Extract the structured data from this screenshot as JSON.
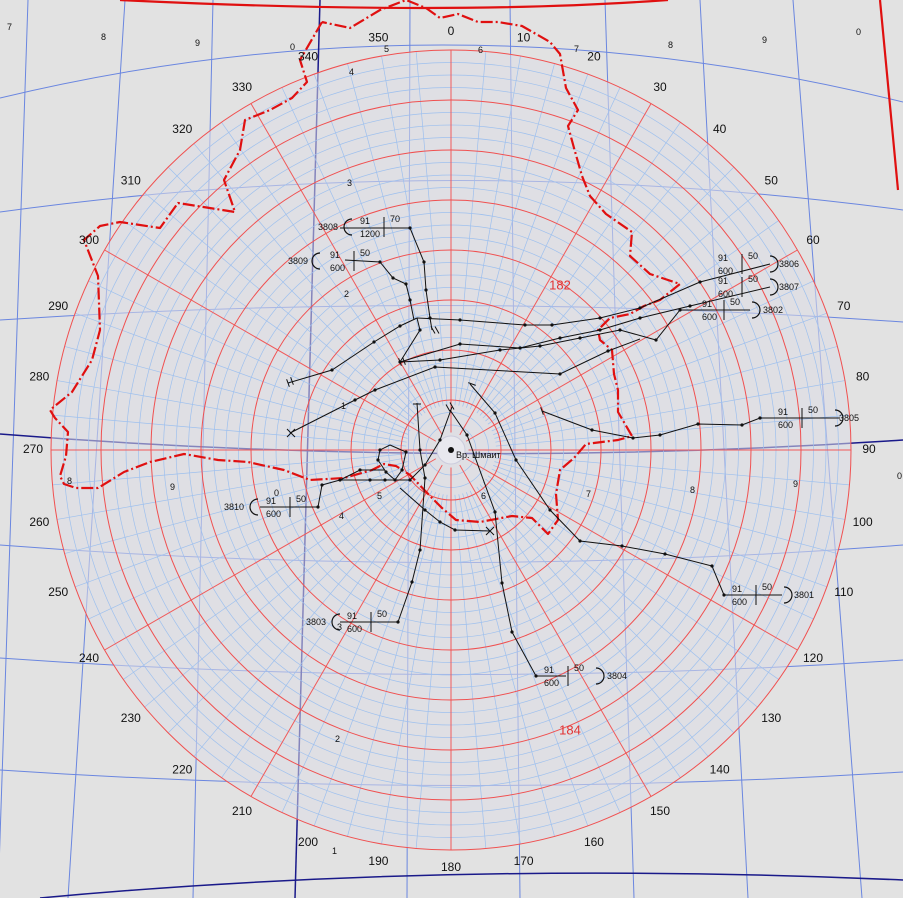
{
  "colors": {
    "background": "#e2e2e2",
    "disc": "#dcdce6",
    "range_ring": "#f05050",
    "sub_ring": "#9ec0ee",
    "bearing_line": "#f05a5a",
    "grid_line": "#6a86e0",
    "grid_dark": "#1a1a8a",
    "boundary": "#e01010",
    "route": "#111111",
    "center_label": "#1a1a66"
  },
  "chart_data": {
    "type": "polar-radar-map",
    "bearing_labels": [
      "0",
      "10",
      "20",
      "30",
      "40",
      "50",
      "60",
      "70",
      "80",
      "90",
      "100",
      "110",
      "120",
      "130",
      "140",
      "150",
      "160",
      "170",
      "180",
      "190",
      "200",
      "210",
      "220",
      "230",
      "240",
      "250",
      "260",
      "270",
      "280",
      "290",
      "300",
      "310",
      "320",
      "330",
      "340",
      "350"
    ],
    "range_rings_major": 8,
    "range_rings_minor_per_major": 4,
    "range_markers": [
      "182",
      "184"
    ],
    "center_label": "Вр. Шмаит",
    "grid_labels": [
      {
        "text": "7"
      },
      {
        "text": "8"
      },
      {
        "text": "9"
      },
      {
        "text": "0"
      },
      {
        "text": "5"
      },
      {
        "text": "6"
      },
      {
        "text": "7"
      },
      {
        "text": "8"
      },
      {
        "text": "9"
      },
      {
        "text": "0"
      },
      {
        "text": "4"
      },
      {
        "text": "3"
      },
      {
        "text": "2"
      },
      {
        "text": "1"
      },
      {
        "text": "5"
      },
      {
        "text": "6"
      },
      {
        "text": "7"
      },
      {
        "text": "8"
      },
      {
        "text": "9"
      },
      {
        "text": "0"
      },
      {
        "text": "8"
      },
      {
        "text": "9"
      },
      {
        "text": "0"
      },
      {
        "text": "4"
      },
      {
        "text": "3"
      },
      {
        "text": "2"
      },
      {
        "text": "1"
      }
    ],
    "beacons": [
      {
        "id": "3808",
        "level": "91",
        "speed": "70",
        "alt": "1200"
      },
      {
        "id": "3809",
        "level": "91",
        "speed": "50",
        "alt": "600"
      },
      {
        "id": "3806",
        "level": "91",
        "speed": "50",
        "alt": "600"
      },
      {
        "id": "3807",
        "level": "91",
        "speed": "50",
        "alt": "600"
      },
      {
        "id": "3802",
        "level": "91",
        "speed": "50",
        "alt": "600"
      },
      {
        "id": "3805",
        "level": "91",
        "speed": "50",
        "alt": "600"
      },
      {
        "id": "3810",
        "level": "91",
        "speed": "50",
        "alt": "600"
      },
      {
        "id": "3801",
        "level": "91",
        "speed": "50",
        "alt": "600"
      },
      {
        "id": "3803",
        "level": "91",
        "speed": "50",
        "alt": "600"
      },
      {
        "id": "3804",
        "level": "91",
        "speed": "50",
        "alt": "600"
      }
    ]
  }
}
